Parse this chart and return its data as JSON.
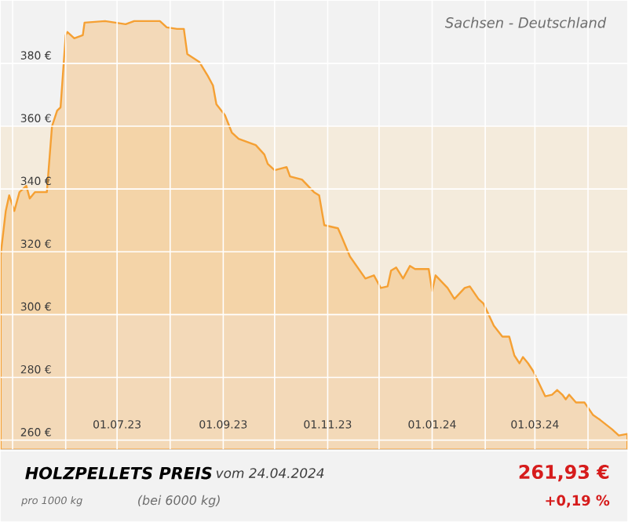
{
  "chart_data": {
    "type": "area",
    "title": "HOLZPELLETS PREIS",
    "subtitle": "Sachsen - Deutschland",
    "annotations": [
      "vom 24.04.2024",
      "pro 1000 kg",
      "(bei 6000 kg)",
      "261,93 €",
      "+0,19 %"
    ],
    "x": [
      "2023-04-24",
      "2023-04-27",
      "2023-04-29",
      "2023-05-02",
      "2023-05-05",
      "2023-05-09",
      "2023-05-11",
      "2023-05-14",
      "2023-05-21",
      "2023-05-24",
      "2023-05-27",
      "2023-05-29",
      "2023-06-01",
      "2023-06-02",
      "2023-06-06",
      "2023-06-11",
      "2023-06-12",
      "2023-06-24",
      "2023-07-06",
      "2023-07-11",
      "2023-07-26",
      "2023-07-30",
      "2023-08-05",
      "2023-08-09",
      "2023-08-11",
      "2023-08-18",
      "2023-08-23",
      "2023-08-26",
      "2023-08-28",
      "2023-09-02",
      "2023-09-06",
      "2023-09-10",
      "2023-09-15",
      "2023-09-20",
      "2023-09-25",
      "2023-09-27",
      "2023-10-01",
      "2023-10-08",
      "2023-10-10",
      "2023-10-17",
      "2023-10-24",
      "2023-10-27",
      "2023-10-30",
      "2023-11-07",
      "2023-11-09",
      "2023-11-14",
      "2023-11-23",
      "2023-11-28",
      "2023-12-02",
      "2023-12-06",
      "2023-12-08",
      "2023-12-11",
      "2023-12-15",
      "2023-12-19",
      "2023-12-22",
      "2023-12-30",
      "2024-01-01",
      "2024-01-03",
      "2024-01-10",
      "2024-01-14",
      "2024-01-20",
      "2024-01-23",
      "2024-01-28",
      "2024-01-31",
      "2024-02-06",
      "2024-02-11",
      "2024-02-15",
      "2024-02-18",
      "2024-02-21",
      "2024-02-23",
      "2024-02-26",
      "2024-02-29",
      "2024-03-07",
      "2024-03-11",
      "2024-03-14",
      "2024-03-17",
      "2024-03-19",
      "2024-03-21",
      "2024-03-25",
      "2024-03-30",
      "2024-04-04",
      "2024-04-08",
      "2024-04-15",
      "2024-04-19",
      "2024-04-24"
    ],
    "series": [
      {
        "color": "#f5a033",
        "values": [
          319,
          333,
          338,
          333,
          339,
          341,
          337,
          339,
          339,
          360,
          365,
          366,
          389,
          390,
          388,
          389,
          393,
          393.5,
          392.5,
          393.5,
          393.5,
          391.5,
          391,
          391,
          383,
          380.5,
          376,
          373,
          367,
          363.5,
          358,
          356,
          355,
          354,
          351,
          348,
          346,
          347,
          344,
          343,
          339,
          338,
          328.5,
          327.5,
          325,
          318.5,
          311.5,
          312.5,
          308.5,
          309,
          314,
          315,
          311.5,
          315.5,
          314.5,
          314.5,
          307.5,
          312.5,
          308.5,
          305,
          308.5,
          309,
          305,
          303.5,
          296.5,
          293,
          293,
          287,
          284.5,
          286.5,
          284.5,
          282,
          274,
          274.5,
          276,
          274.5,
          273,
          274.5,
          272,
          272,
          268,
          266.5,
          263.5,
          261.5,
          262
        ]
      }
    ],
    "xlim": [
      "2023-04-24",
      "2024-04-24"
    ],
    "ylim": [
      257,
      400
    ],
    "xticks": [
      {
        "value": "2023-05-01",
        "label": null
      },
      {
        "value": "2023-06-01",
        "label": null
      },
      {
        "value": "2023-07-01",
        "label": "01.07.23"
      },
      {
        "value": "2023-08-01",
        "label": null
      },
      {
        "value": "2023-09-01",
        "label": "01.09.23"
      },
      {
        "value": "2023-10-01",
        "label": null
      },
      {
        "value": "2023-11-01",
        "label": "01.11.23"
      },
      {
        "value": "2023-12-01",
        "label": null
      },
      {
        "value": "2024-01-01",
        "label": "01.01.24"
      },
      {
        "value": "2024-02-01",
        "label": null
      },
      {
        "value": "2024-03-01",
        "label": "01.03.24"
      },
      {
        "value": "2024-04-01",
        "label": null
      }
    ],
    "yticks": [
      {
        "value": 260,
        "label": "260 €"
      },
      {
        "value": 280,
        "label": "280 €"
      },
      {
        "value": 300,
        "label": "300 €"
      },
      {
        "value": 320,
        "label": "320 €"
      },
      {
        "value": 340,
        "label": "340 €"
      },
      {
        "value": 360,
        "label": "360 €"
      },
      {
        "value": 380,
        "label": "380 €"
      }
    ],
    "bands": [
      {
        "axis": "y",
        "from": 300,
        "to": 360,
        "color": "#f4ebdc"
      }
    ],
    "grid": true,
    "marker": "none",
    "line_style": "solid"
  }
}
